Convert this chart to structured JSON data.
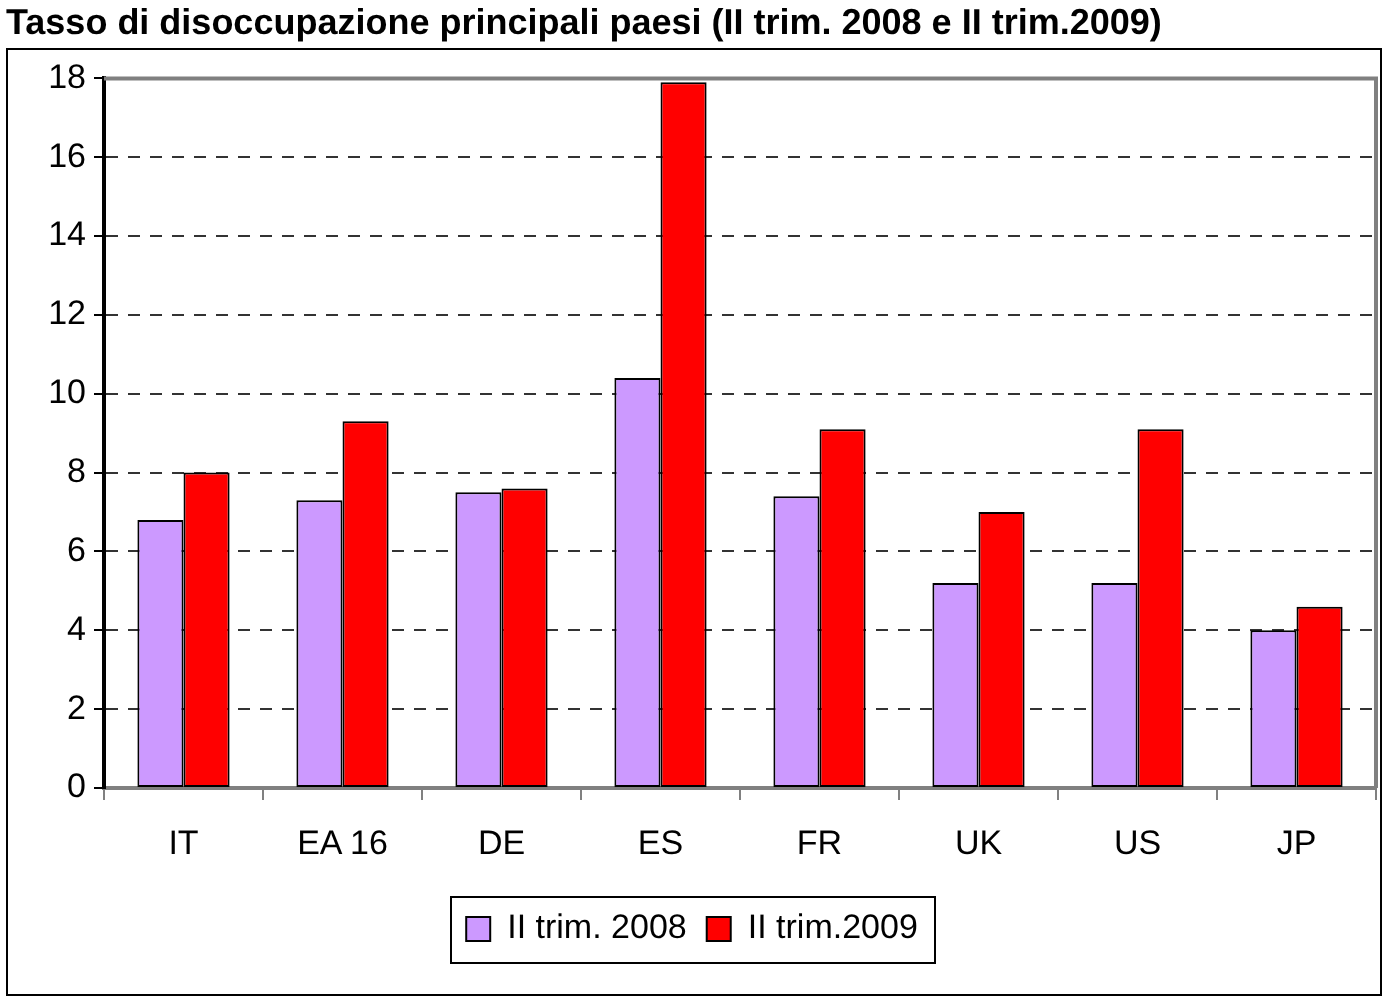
{
  "chart_data": {
    "type": "bar",
    "title": "Tasso di disoccupazione principali paesi (II trim. 2008 e II trim.2009)",
    "categories": [
      "IT",
      "EA 16",
      "DE",
      "ES",
      "FR",
      "UK",
      "US",
      "JP"
    ],
    "series": [
      {
        "name": "II trim. 2008",
        "color": "#cc99ff",
        "values": [
          6.8,
          7.3,
          7.5,
          10.4,
          7.4,
          5.2,
          5.2,
          4.0
        ]
      },
      {
        "name": "II trim.2009",
        "color": "#ff0000",
        "values": [
          8.0,
          9.3,
          7.6,
          17.9,
          9.1,
          7.0,
          9.1,
          4.6
        ]
      }
    ],
    "ylim": [
      0,
      18
    ],
    "yticks": [
      0,
      2,
      4,
      6,
      8,
      10,
      12,
      14,
      16,
      18
    ],
    "grid": "y",
    "legend": "bottom"
  }
}
